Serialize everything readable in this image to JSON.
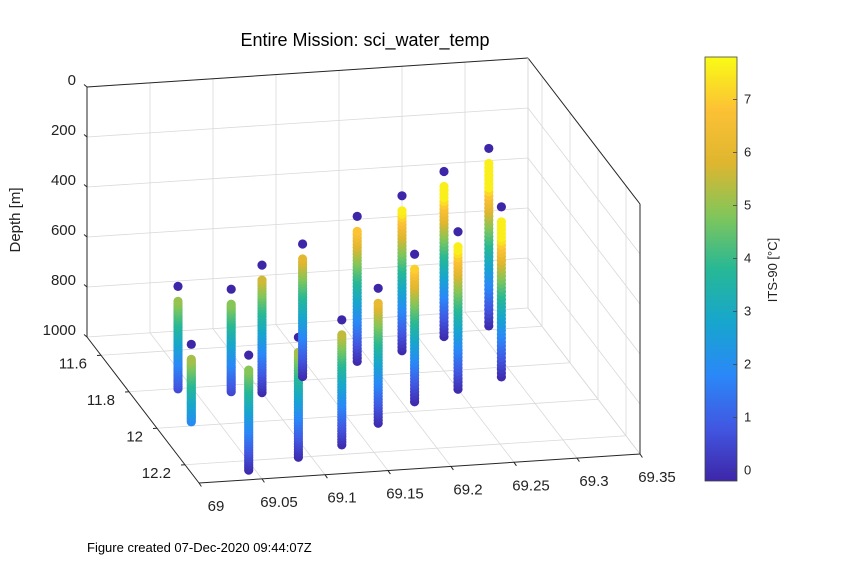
{
  "chart_data": {
    "type": "scatter",
    "title": "Entire Mission: sci_water_temp",
    "zlabel": "Depth [m]",
    "colorbar_label": "ITS-90 [°C]",
    "x_ticks": [
      "69",
      "69.05",
      "69.1",
      "69.15",
      "69.2",
      "69.25",
      "69.3",
      "69.35"
    ],
    "y_ticks": [
      "11.6",
      "11.8",
      "12",
      "12.2"
    ],
    "z_ticks": [
      "0",
      "200",
      "400",
      "600",
      "800",
      "1000"
    ],
    "colorbar_ticks": [
      "0",
      "1",
      "2",
      "3",
      "4",
      "5",
      "6",
      "7"
    ],
    "xlim": [
      69,
      69.35
    ],
    "ylim": [
      11.5,
      12.3
    ],
    "zlim": [
      0,
      1000
    ],
    "clim": [
      -0.2,
      7.8
    ],
    "z_reversed": true,
    "grid": true,
    "colormap": "parula",
    "colorbar_colors": [
      "#3e26a8",
      "#4157e2",
      "#2a88f8",
      "#17a6cd",
      "#27b895",
      "#81c65a",
      "#dfb62f",
      "#fcc135",
      "#f9fb15"
    ],
    "series": [
      {
        "x": 69.005,
        "y": 12.2,
        "depth_top": 580,
        "depth_bottom": 830
      },
      {
        "x": 69.03,
        "y": 11.88,
        "depth_top": 590,
        "depth_bottom": 940
      },
      {
        "x": 69.045,
        "y": 12.25,
        "depth_top": 600,
        "depth_bottom": 1000
      },
      {
        "x": 69.07,
        "y": 11.9,
        "depth_top": 600,
        "depth_bottom": 950
      },
      {
        "x": 69.09,
        "y": 12.2,
        "depth_top": 580,
        "depth_bottom": 1000
      },
      {
        "x": 69.1,
        "y": 11.85,
        "depth_top": 550,
        "depth_bottom": 1000
      },
      {
        "x": 69.13,
        "y": 12.15,
        "depth_top": 560,
        "depth_bottom": 1000
      },
      {
        "x": 69.14,
        "y": 11.78,
        "depth_top": 530,
        "depth_bottom": 1000
      },
      {
        "x": 69.17,
        "y": 12.05,
        "depth_top": 520,
        "depth_bottom": 1000
      },
      {
        "x": 69.19,
        "y": 11.72,
        "depth_top": 480,
        "depth_bottom": 1000
      },
      {
        "x": 69.21,
        "y": 11.95,
        "depth_top": 470,
        "depth_bottom": 1000
      },
      {
        "x": 69.23,
        "y": 11.68,
        "depth_top": 440,
        "depth_bottom": 1000
      },
      {
        "x": 69.25,
        "y": 11.9,
        "depth_top": 430,
        "depth_bottom": 1000
      },
      {
        "x": 69.27,
        "y": 11.62,
        "depth_top": 400,
        "depth_bottom": 1000
      },
      {
        "x": 69.29,
        "y": 11.85,
        "depth_top": 380,
        "depth_bottom": 1000
      },
      {
        "x": 69.31,
        "y": 11.58,
        "depth_top": 350,
        "depth_bottom": 1000
      }
    ]
  },
  "caption": "Figure created 07-Dec-2020 09:44:07Z"
}
